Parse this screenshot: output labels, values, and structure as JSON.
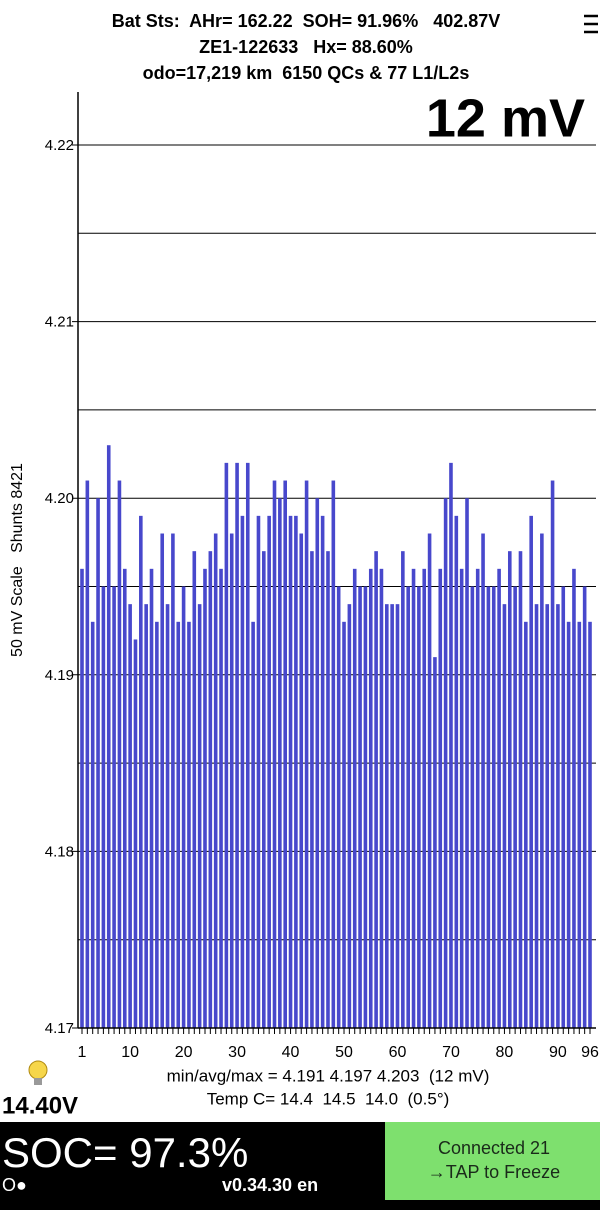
{
  "header": {
    "line1": "Bat Sts:  AHr= 162.22  SOH= 91.96%   402.87V",
    "line2": "ZE1-122633   Hx= 88.60%",
    "line3": "odo=17,219 km  6150 QCs & 77 L1/L2s"
  },
  "chart_data": {
    "type": "bar",
    "annotation": "12 mV",
    "y_label": "50 mV Scale   Shunts 8421",
    "color": "#4848cc",
    "grid": true,
    "ylim": [
      4.17,
      4.223
    ],
    "yticks": [
      {
        "value": 4.17,
        "label": "4.17"
      },
      {
        "value": 4.18,
        "label": "4.18"
      },
      {
        "value": 4.19,
        "label": "4.19"
      },
      {
        "value": 4.2,
        "label": "4.20"
      },
      {
        "value": 4.21,
        "label": "4.21"
      },
      {
        "value": 4.22,
        "label": "4.22"
      }
    ],
    "minor_gridlines": [
      4.175,
      4.185,
      4.195,
      4.205,
      4.215
    ],
    "categories": [
      1,
      null,
      null,
      null,
      null,
      null,
      null,
      null,
      null,
      10,
      null,
      null,
      null,
      null,
      null,
      null,
      null,
      null,
      null,
      20,
      null,
      null,
      null,
      null,
      null,
      null,
      null,
      null,
      null,
      30,
      null,
      null,
      null,
      null,
      null,
      null,
      null,
      null,
      null,
      40,
      null,
      null,
      null,
      null,
      null,
      null,
      null,
      null,
      null,
      50,
      null,
      null,
      null,
      null,
      null,
      null,
      null,
      null,
      null,
      60,
      null,
      null,
      null,
      null,
      null,
      null,
      null,
      null,
      null,
      70,
      null,
      null,
      null,
      null,
      null,
      null,
      null,
      null,
      null,
      80,
      null,
      null,
      null,
      null,
      null,
      null,
      null,
      null,
      null,
      90,
      null,
      null,
      null,
      null,
      null,
      96
    ],
    "values": [
      4.196,
      4.201,
      4.193,
      4.2,
      4.195,
      4.203,
      4.195,
      4.201,
      4.196,
      4.194,
      4.192,
      4.199,
      4.194,
      4.196,
      4.193,
      4.198,
      4.194,
      4.198,
      4.193,
      4.195,
      4.193,
      4.197,
      4.194,
      4.196,
      4.197,
      4.198,
      4.196,
      4.202,
      4.198,
      4.202,
      4.199,
      4.202,
      4.193,
      4.199,
      4.197,
      4.199,
      4.201,
      4.2,
      4.201,
      4.199,
      4.199,
      4.198,
      4.201,
      4.197,
      4.2,
      4.199,
      4.197,
      4.201,
      4.195,
      4.193,
      4.194,
      4.196,
      4.195,
      4.195,
      4.196,
      4.197,
      4.196,
      4.194,
      4.194,
      4.194,
      4.197,
      4.195,
      4.196,
      4.195,
      4.196,
      4.198,
      4.191,
      4.196,
      4.2,
      4.202,
      4.199,
      4.196,
      4.2,
      4.195,
      4.196,
      4.198,
      4.195,
      4.195,
      4.196,
      4.194,
      4.197,
      4.195,
      4.197,
      4.193,
      4.199,
      4.194,
      4.198,
      4.194,
      4.201,
      4.194,
      4.195,
      4.193,
      4.196,
      4.193,
      4.195,
      4.193
    ],
    "stats": "min/avg/max = 4.191 4.197 4.203  (12 mV)",
    "temp": "Temp C= 14.4  14.5  14.0  (0.5°)"
  },
  "status": {
    "voltage": "14.40V",
    "soc": "SOC= 97.3%",
    "indicator": "O●",
    "version": "v0.34.30 en",
    "button_line1": "Connected 21",
    "button_line2": "→TAP to Freeze"
  }
}
